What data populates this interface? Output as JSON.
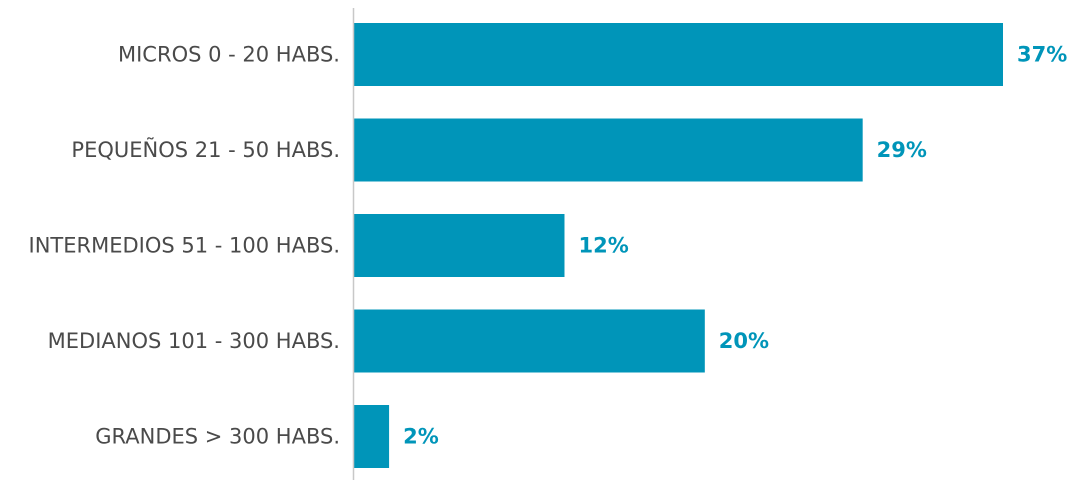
{
  "chart_data": {
    "type": "bar",
    "orientation": "horizontal",
    "categories": [
      "MICROS 0 - 20 HABS.",
      "PEQUEÑOS 21 - 50 HABS.",
      "INTERMEDIOS 51 - 100 HABS.",
      "MEDIANOS 101 - 300 HABS.",
      "GRANDES > 300 HABS."
    ],
    "values": [
      37,
      29,
      12,
      20,
      2
    ],
    "value_labels": [
      "37%",
      "29%",
      "12%",
      "20%",
      "2%"
    ],
    "unit": "%",
    "title": "",
    "xlabel": "",
    "ylabel": "",
    "grid": false,
    "legend": "none",
    "colors": {
      "bar": "#0095b9",
      "value_label": "#0095b9",
      "category_label": "#4a4a4a",
      "axis": "#c8c8c8"
    }
  }
}
